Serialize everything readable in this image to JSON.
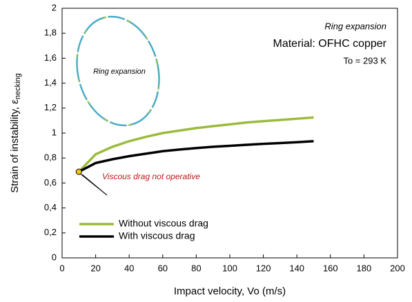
{
  "chart_data": {
    "type": "line",
    "x_label": "Impact velocity, Vo (m/s)",
    "y_label": "Strain of instability, ε",
    "y_label_sub": "necking",
    "x": [
      10,
      20,
      30,
      40,
      50,
      60,
      70,
      80,
      90,
      100,
      110,
      120,
      130,
      140,
      150
    ],
    "series": [
      {
        "name": "Without viscous drag",
        "color": "#9bbb3b",
        "values": [
          0.69,
          0.83,
          0.89,
          0.935,
          0.97,
          1.0,
          1.02,
          1.04,
          1.055,
          1.07,
          1.085,
          1.095,
          1.105,
          1.115,
          1.125
        ]
      },
      {
        "name": "With viscous drag",
        "color": "#000000",
        "values": [
          0.69,
          0.76,
          0.79,
          0.815,
          0.835,
          0.855,
          0.868,
          0.88,
          0.89,
          0.898,
          0.906,
          0.914,
          0.92,
          0.927,
          0.935
        ]
      }
    ],
    "highlight_point": {
      "x": 10,
      "y": 0.69,
      "color": "#f5c518"
    },
    "annotations": [
      "Ring expansion",
      "Material: OFHC copper",
      "To = 293 K",
      "Ring expansion",
      "Viscous drag not operative"
    ],
    "xlim": [
      0,
      200
    ],
    "xticks": [
      0,
      20,
      40,
      60,
      80,
      100,
      120,
      140,
      160,
      180,
      200
    ],
    "ylim": [
      0,
      2
    ],
    "yticks": [
      0,
      {
        "value": 0.2,
        "label": "0,2"
      },
      {
        "value": 0.4,
        "label": "0,4"
      },
      {
        "value": 0.6,
        "label": "0,6"
      },
      {
        "value": 0.8,
        "label": "0,8"
      },
      1,
      {
        "value": 1.2,
        "label": "1,2"
      },
      {
        "value": 1.4,
        "label": "1,4"
      },
      {
        "value": 1.6,
        "label": "1,6"
      },
      {
        "value": 1.8,
        "label": "1,8"
      },
      2
    ],
    "grid": false,
    "legend": "lower left"
  }
}
